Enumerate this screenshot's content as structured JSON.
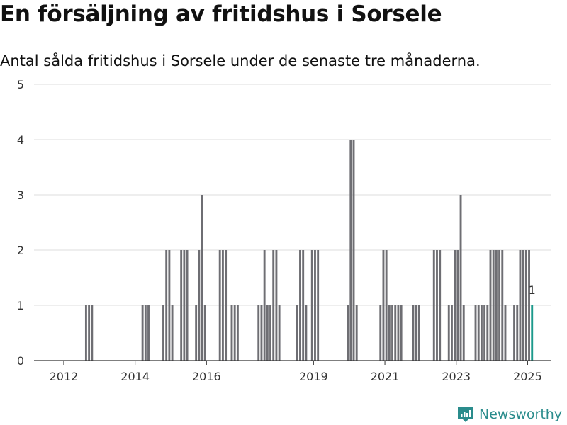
{
  "title": "En försäljning av fritidshus i Sorsele",
  "subtitle": "Antal sålda fritidshus i Sorsele under de senaste tre månaderna.",
  "brand": {
    "name": "Newsworthy",
    "icon": "newsworthy-logo-icon",
    "color": "#2a8c8c"
  },
  "chart_data": {
    "type": "bar",
    "x_type": "date",
    "x_range": [
      "2011-03",
      "2025-09"
    ],
    "x_ticks": [
      "2012",
      "2014",
      "2016",
      "2019",
      "2021",
      "2023",
      "2025"
    ],
    "y_range": [
      0,
      5
    ],
    "y_ticks": [
      0,
      1,
      2,
      3,
      4,
      5
    ],
    "grid": true,
    "bar_color": "#6e6e73",
    "highlight_color": "#1d9a8c",
    "annotation": {
      "x": "2025-02",
      "label": "1"
    },
    "x": [
      "2012-08",
      "2012-09",
      "2012-10",
      "2014-03",
      "2014-04",
      "2014-05",
      "2014-10",
      "2014-11",
      "2014-12",
      "2015-01",
      "2015-04",
      "2015-05",
      "2015-06",
      "2015-09",
      "2015-10",
      "2015-11",
      "2015-12",
      "2016-05",
      "2016-06",
      "2016-07",
      "2016-09",
      "2016-10",
      "2016-11",
      "2017-06",
      "2017-07",
      "2017-08",
      "2017-09",
      "2017-10",
      "2017-11",
      "2017-12",
      "2018-01",
      "2018-07",
      "2018-08",
      "2018-09",
      "2018-10",
      "2018-12",
      "2019-01",
      "2019-02",
      "2019-12",
      "2020-01",
      "2020-02",
      "2020-03",
      "2020-11",
      "2020-12",
      "2021-01",
      "2021-02",
      "2021-03",
      "2021-04",
      "2021-05",
      "2021-06",
      "2021-10",
      "2021-11",
      "2021-12",
      "2022-05",
      "2022-06",
      "2022-07",
      "2022-10",
      "2022-11",
      "2022-12",
      "2023-01",
      "2023-02",
      "2023-03",
      "2023-07",
      "2023-08",
      "2023-09",
      "2023-10",
      "2023-11",
      "2023-12",
      "2024-01",
      "2024-02",
      "2024-03",
      "2024-04",
      "2024-05",
      "2024-08",
      "2024-09",
      "2024-10",
      "2024-11",
      "2024-12",
      "2025-01",
      "2025-02"
    ],
    "series": [
      {
        "values": [
          1,
          1,
          1,
          1,
          1,
          1,
          1,
          2,
          2,
          1,
          2,
          2,
          2,
          1,
          2,
          3,
          1,
          2,
          2,
          2,
          1,
          1,
          1,
          1,
          1,
          2,
          1,
          1,
          2,
          2,
          1,
          1,
          2,
          2,
          1,
          2,
          2,
          2,
          1,
          4,
          4,
          1,
          1,
          2,
          2,
          1,
          1,
          1,
          1,
          1,
          1,
          1,
          1,
          2,
          2,
          2,
          1,
          1,
          2,
          2,
          3,
          1,
          1,
          1,
          1,
          1,
          1,
          2,
          2,
          2,
          2,
          2,
          1,
          1,
          1,
          2,
          2,
          2,
          2,
          1
        ]
      }
    ]
  }
}
